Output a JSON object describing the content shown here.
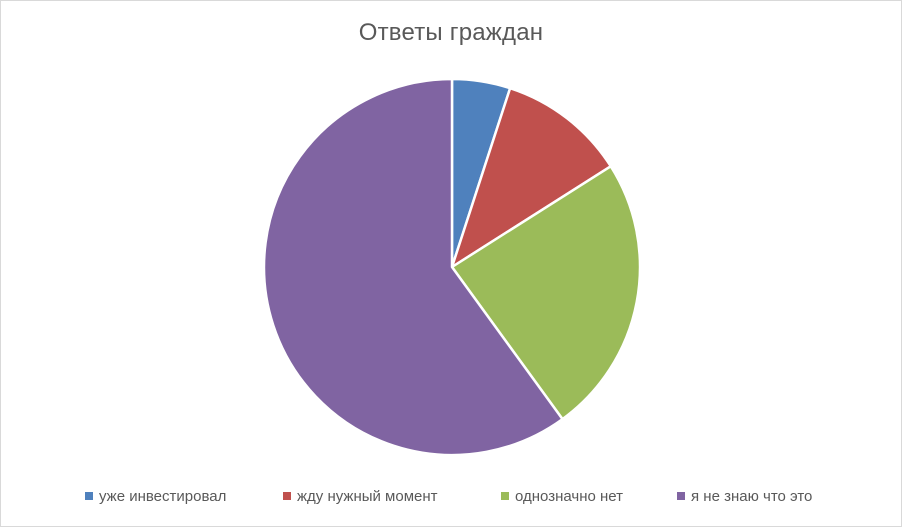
{
  "chart_data": {
    "type": "pie",
    "title": "Ответы граждан",
    "categories": [
      "уже инвестировал",
      "жду нужный момент",
      "однозначно нет",
      "я не знаю что это"
    ],
    "values": [
      5,
      11,
      24,
      60
    ],
    "colors": [
      "#4f81bd",
      "#c0504d",
      "#9bbb59",
      "#8064a2"
    ],
    "legend_position": "bottom"
  }
}
